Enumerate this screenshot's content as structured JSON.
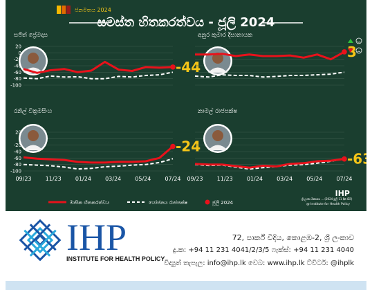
{
  "header": {
    "badge": "ජනමතය 2024",
    "title": "සමස්ත හිතකරත්වය - ජූලි 2024",
    "flag_colors": [
      "#f5b800",
      "#e46a00",
      "#9b1b1b"
    ]
  },
  "chart_data": {
    "type": "line",
    "x_tick_labels": [
      "09/23",
      "11/23",
      "01/24",
      "03/24",
      "05/24",
      "07/24"
    ],
    "y_ticks": [
      20,
      0,
      -20,
      -40,
      -60,
      -80,
      -100
    ],
    "ylim": [
      -100,
      20
    ],
    "grid": true,
    "legend": {
      "placement": "bottom",
      "entries": [
        {
          "label": "මාසික හිතකරත්වය",
          "style": "solid-red"
        },
        {
          "label": "යෝජනය රාජපක්ෂ",
          "style": "dashed-white"
        },
        {
          "label": "ජූලි 2024",
          "style": "red-dot"
        }
      ]
    },
    "panels": [
      {
        "name": "සජිත් ප්‍රේමදාස",
        "final_label": "-44",
        "red": [
          -50,
          -62,
          -54,
          -50,
          -60,
          -55,
          -28,
          -52,
          -56,
          -44,
          -46,
          -44
        ],
        "white": [
          -78,
          -80,
          -72,
          -75,
          -74,
          -80,
          -80,
          -73,
          -75,
          -70,
          -68,
          -60
        ]
      },
      {
        "name": "අනුර කුමාර දිසානායක",
        "final_label": "3",
        "red": [
          -5,
          -5,
          -3,
          -10,
          -5,
          -10,
          -10,
          -8,
          -15,
          -5,
          -20,
          3
        ],
        "white": [
          -72,
          -75,
          -68,
          -70,
          -70,
          -75,
          -73,
          -70,
          -70,
          -68,
          -66,
          -60
        ]
      },
      {
        "name": "රනිල් වික්‍රමසිංහ",
        "final_label": "-24",
        "red": [
          -58,
          -62,
          -64,
          -66,
          -72,
          -74,
          -74,
          -72,
          -72,
          -70,
          -60,
          -24
        ],
        "white": [
          -80,
          -82,
          -84,
          -88,
          -94,
          -92,
          -87,
          -85,
          -82,
          -80,
          -74,
          -62
        ]
      },
      {
        "name": "නාමල් රාජපක්ෂ",
        "final_label": "-63",
        "red": [
          -78,
          -80,
          -80,
          -85,
          -90,
          -84,
          -86,
          -78,
          -76,
          -70,
          -68,
          -63
        ],
        "white": [
          -80,
          -83,
          -82,
          -88,
          -94,
          -90,
          -86,
          -82,
          -80,
          -76,
          -70,
          -62
        ]
      }
    ]
  },
  "source_note": "ශ්‍රී ලංකා මනාපය ... (2024 ජූලි 11 දින සිට)",
  "panel_brand": "IHP",
  "panel_brand_sub": "@ Institute for Health Policy",
  "footer": {
    "logo_text": "IHP",
    "logo_sub": "INSTITUTE FOR HEALTH POLICY",
    "address": "72, පාර්ක් විදිය, කොළඹ-2, ශ්‍රී ලංකාව",
    "phone": "දු.ක: +94 11 231 4041/2/3/5 ෆැක්ස්: +94 11 231 4040",
    "web": "විද්‍යුත් තැපැල: info@ihp.lk වෙබ: www.ihp.lk ට්විටර්: @ihplk"
  },
  "colors": {
    "panel_bg": "#1a3e2f",
    "red_line": "#e8121b",
    "white_line": "#ffffff",
    "highlight": "#f5c518",
    "up_arrow": "#2fbf3a",
    "down_arrow": "#e8121b",
    "logo_blue": "#1a55a6"
  }
}
